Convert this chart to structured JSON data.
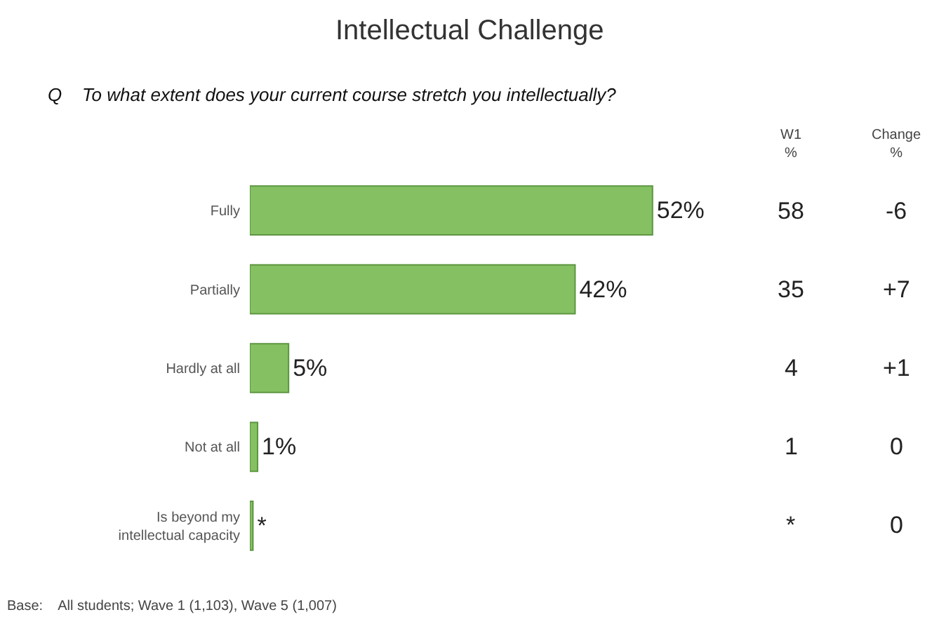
{
  "chart_data": {
    "type": "bar",
    "orientation": "horizontal",
    "title": "Intellectual Challenge",
    "subtitle": "Q    To what extent does your current course stretch you intellectually?",
    "categories": [
      "Fully",
      "Partially",
      "Hardly at all",
      "Not at all",
      "Is beyond my intellectual capacity"
    ],
    "values": [
      52,
      42,
      5,
      1,
      0.4
    ],
    "value_labels": [
      "52%",
      "42%",
      "5%",
      "1%",
      "*"
    ],
    "color": "#85c163",
    "tick_labels": "y",
    "annotations": [
      "W1\n%",
      "Change\n%",
      "58",
      "-6",
      "35",
      "+7",
      "4",
      "+1",
      "1",
      "0",
      "*",
      "0",
      "Base:    All students; Wave 1 (1,103), Wave 5 (1,007)"
    ]
  }
}
